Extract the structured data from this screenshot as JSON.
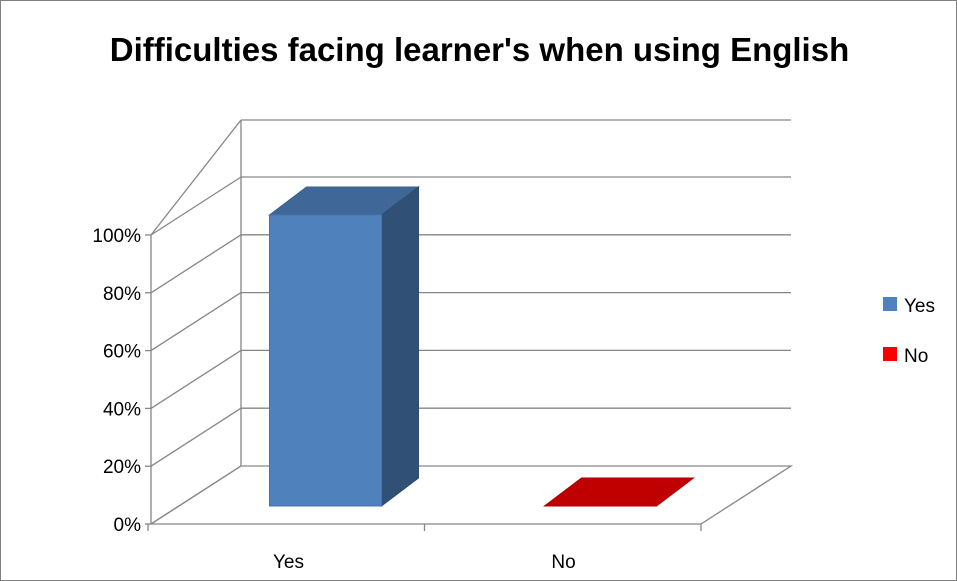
{
  "chart_data": {
    "type": "bar",
    "title": "Difficulties facing learner's when using English",
    "xlabel": "",
    "ylabel": "",
    "categories": [
      "Yes",
      "No"
    ],
    "series": [
      {
        "name": "Yes",
        "color": "#4F81BD",
        "values": [
          100,
          null
        ]
      },
      {
        "name": "No",
        "color": "#FF0000",
        "values": [
          null,
          0
        ]
      }
    ],
    "ylim": [
      0,
      100
    ],
    "y_ticks": [
      "0%",
      "20%",
      "40%",
      "60%",
      "80%",
      "100%"
    ],
    "grid": true,
    "three_d": true,
    "legend": {
      "position": "right",
      "entries": [
        {
          "label": "Yes",
          "color": "#4F81BD"
        },
        {
          "label": "No",
          "color": "#FF0000"
        }
      ]
    }
  }
}
